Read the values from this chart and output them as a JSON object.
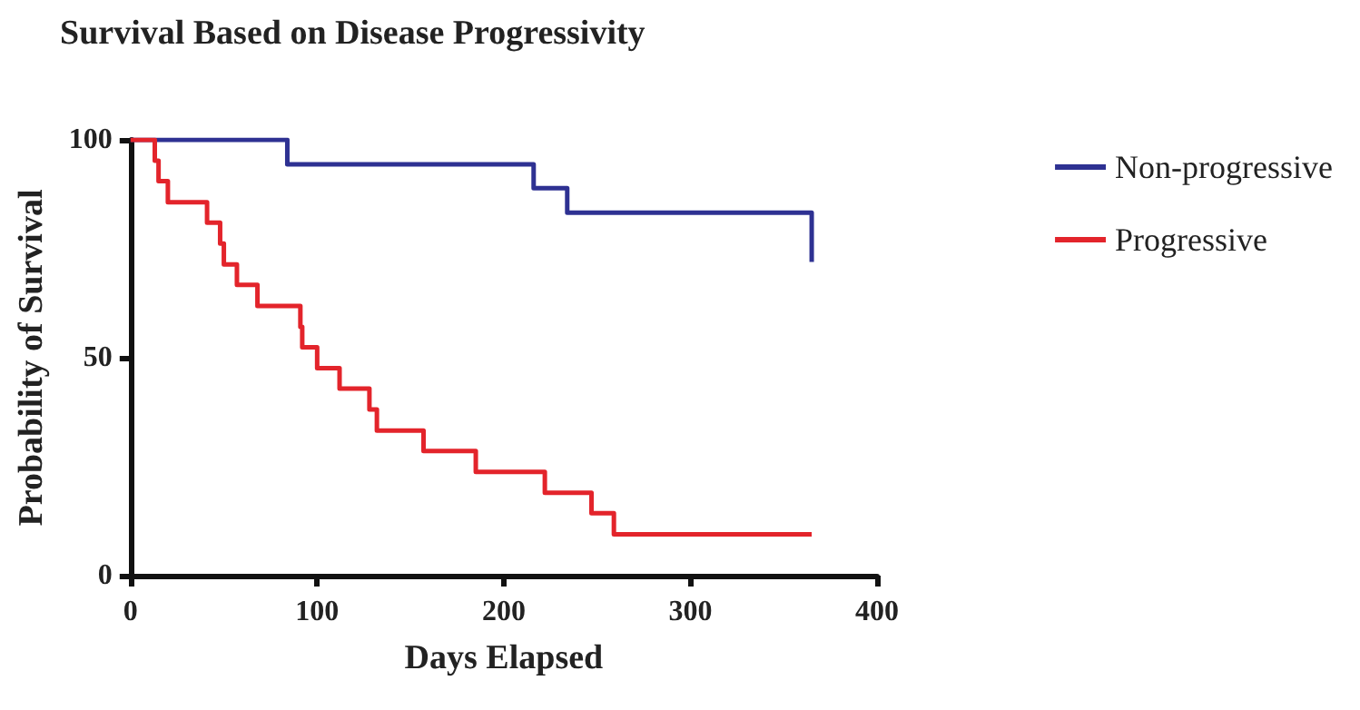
{
  "chart_data": {
    "type": "step",
    "title": "Survival Based on Disease Progressivity",
    "xlabel": "Days Elapsed",
    "ylabel": "Probability of Survival",
    "xlim": [
      0,
      400
    ],
    "xticks": [
      0,
      100,
      200,
      300,
      400
    ],
    "ylim": [
      0,
      100
    ],
    "yticks": [
      0,
      50,
      100
    ],
    "grid": false,
    "legend": "right",
    "marker": "none",
    "line_style": "solid",
    "series": [
      {
        "name": "Non-progressive",
        "color": "#2e3192",
        "x": [
          0,
          84,
          216,
          234,
          365,
          365
        ],
        "values": [
          100,
          94.4,
          88.9,
          83.3,
          83.3,
          72
        ]
      },
      {
        "name": "Progressive",
        "color": "#e3242b",
        "x": [
          0,
          13,
          15,
          20,
          41,
          48,
          50,
          57,
          68,
          91,
          92,
          100,
          112,
          128,
          132,
          157,
          185,
          222,
          247,
          259,
          365
        ],
        "values": [
          100,
          95.2,
          90.5,
          85.7,
          81,
          76.2,
          71.4,
          66.7,
          61.9,
          57.1,
          52.4,
          47.6,
          42.9,
          38.1,
          33.3,
          28.6,
          23.8,
          19,
          14.3,
          9.5,
          9.5
        ]
      }
    ]
  }
}
